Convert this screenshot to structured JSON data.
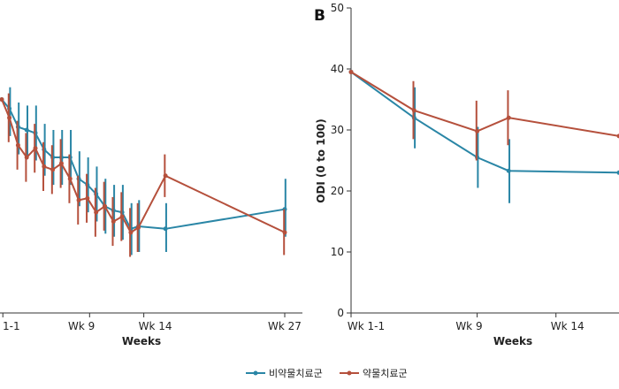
{
  "colors": {
    "non_drug": "#2a86a6",
    "drug": "#b5503c",
    "axis": "#333333"
  },
  "legend": {
    "items": [
      "비약물치료군",
      "약물치료군"
    ]
  },
  "chart_data": [
    {
      "type": "line",
      "panel_label": "",
      "xlabel": "Weeks",
      "ylabel": "",
      "x_tick_labels": [
        {
          "x": 1,
          "label": "1-1"
        },
        {
          "x": 9,
          "label": "Wk 9"
        },
        {
          "x": 14,
          "label": "Wk 14"
        },
        {
          "x": 27,
          "label": "Wk 27"
        }
      ],
      "xlim": [
        0.85,
        28.5
      ],
      "ylim": [
        0,
        50
      ],
      "series": [
        {
          "name": "비약물치료군",
          "points": [
            {
              "x": 0.9,
              "y": 35,
              "lo": 35,
              "hi": 35
            },
            {
              "x": 1.6,
              "y": 33.5,
              "lo": 29,
              "hi": 37
            },
            {
              "x": 2.4,
              "y": 30.5,
              "lo": 26,
              "hi": 34.5
            },
            {
              "x": 3.2,
              "y": 30,
              "lo": 25.5,
              "hi": 34
            },
            {
              "x": 4.0,
              "y": 29.5,
              "lo": 25,
              "hi": 34
            },
            {
              "x": 4.8,
              "y": 26.8,
              "lo": 22.5,
              "hi": 31
            },
            {
              "x": 5.6,
              "y": 25.5,
              "lo": 21,
              "hi": 30
            },
            {
              "x": 6.4,
              "y": 25.5,
              "lo": 21,
              "hi": 30
            },
            {
              "x": 7.2,
              "y": 25.5,
              "lo": 21,
              "hi": 30
            },
            {
              "x": 8.0,
              "y": 22,
              "lo": 17.5,
              "hi": 26.5
            },
            {
              "x": 8.8,
              "y": 21,
              "lo": 16.5,
              "hi": 25.5
            },
            {
              "x": 9.6,
              "y": 19.5,
              "lo": 15,
              "hi": 24
            },
            {
              "x": 10.4,
              "y": 17.5,
              "lo": 13,
              "hi": 22
            },
            {
              "x": 11.2,
              "y": 16.8,
              "lo": 12.5,
              "hi": 21
            },
            {
              "x": 12.0,
              "y": 16.5,
              "lo": 12,
              "hi": 21
            },
            {
              "x": 12.8,
              "y": 13.8,
              "lo": 9.5,
              "hi": 18
            },
            {
              "x": 13.5,
              "y": 14.2,
              "lo": 10,
              "hi": 18.5
            },
            {
              "x": 16.0,
              "y": 13.8,
              "lo": 10,
              "hi": 18
            },
            {
              "x": 27.0,
              "y": 17,
              "lo": 12.5,
              "hi": 22
            }
          ]
        },
        {
          "name": "약물치료군",
          "points": [
            {
              "x": 0.9,
              "y": 35,
              "lo": 35,
              "hi": 35
            },
            {
              "x": 1.6,
              "y": 32,
              "lo": 28,
              "hi": 36
            },
            {
              "x": 2.4,
              "y": 27.5,
              "lo": 23.5,
              "hi": 31.5
            },
            {
              "x": 3.2,
              "y": 25.5,
              "lo": 21.5,
              "hi": 29.5
            },
            {
              "x": 4.0,
              "y": 27,
              "lo": 23,
              "hi": 31
            },
            {
              "x": 4.8,
              "y": 24,
              "lo": 20,
              "hi": 28
            },
            {
              "x": 5.6,
              "y": 23.5,
              "lo": 19.5,
              "hi": 27.5
            },
            {
              "x": 6.4,
              "y": 24.5,
              "lo": 20.5,
              "hi": 28.5
            },
            {
              "x": 7.2,
              "y": 22,
              "lo": 18,
              "hi": 26
            },
            {
              "x": 8.0,
              "y": 18.5,
              "lo": 14.5,
              "hi": 22.5
            },
            {
              "x": 8.8,
              "y": 18.8,
              "lo": 14.8,
              "hi": 22.8
            },
            {
              "x": 9.6,
              "y": 16.5,
              "lo": 12.5,
              "hi": 20.5
            },
            {
              "x": 10.4,
              "y": 17.5,
              "lo": 13.5,
              "hi": 21.5
            },
            {
              "x": 11.2,
              "y": 15,
              "lo": 11,
              "hi": 19
            },
            {
              "x": 12.0,
              "y": 15.8,
              "lo": 11.8,
              "hi": 19.8
            },
            {
              "x": 12.8,
              "y": 13.2,
              "lo": 9.2,
              "hi": 17.2
            },
            {
              "x": 13.5,
              "y": 14,
              "lo": 10,
              "hi": 18
            },
            {
              "x": 16.0,
              "y": 22.5,
              "lo": 19,
              "hi": 26
            },
            {
              "x": 27.0,
              "y": 13.2,
              "lo": 9.5,
              "hi": 17
            }
          ]
        }
      ]
    },
    {
      "type": "line",
      "panel_label": "B",
      "xlabel": "Weeks",
      "ylabel": "ODI (0 to 100)",
      "y_ticks": [
        0,
        10,
        20,
        30,
        40,
        50
      ],
      "x_tick_labels": [
        {
          "x": 1,
          "label": "Wk 1-1"
        },
        {
          "x": 9,
          "label": "Wk 9"
        },
        {
          "x": 14,
          "label": "Wk 14"
        }
      ],
      "xlim": [
        1,
        18
      ],
      "ylim": [
        0,
        50
      ],
      "series": [
        {
          "name": "비약물치료군",
          "points": [
            {
              "x": 1,
              "y": 39.5,
              "lo": 39.5,
              "hi": 39.5
            },
            {
              "x": 5,
              "y": 32,
              "lo": 27,
              "hi": 37
            },
            {
              "x": 9,
              "y": 25.5,
              "lo": 20.5,
              "hi": 30.5
            },
            {
              "x": 11,
              "y": 23.3,
              "lo": 18,
              "hi": 28.5
            },
            {
              "x": 18,
              "y": 23,
              "lo": 23,
              "hi": 23
            }
          ]
        },
        {
          "name": "약물치료군",
          "points": [
            {
              "x": 1,
              "y": 39.5,
              "lo": 39.5,
              "hi": 39.5
            },
            {
              "x": 5,
              "y": 33.2,
              "lo": 28.5,
              "hi": 38
            },
            {
              "x": 9,
              "y": 29.8,
              "lo": 25,
              "hi": 34.8
            },
            {
              "x": 11,
              "y": 32,
              "lo": 27.5,
              "hi": 36.5
            },
            {
              "x": 18,
              "y": 29,
              "lo": 29,
              "hi": 29
            }
          ]
        }
      ]
    }
  ]
}
